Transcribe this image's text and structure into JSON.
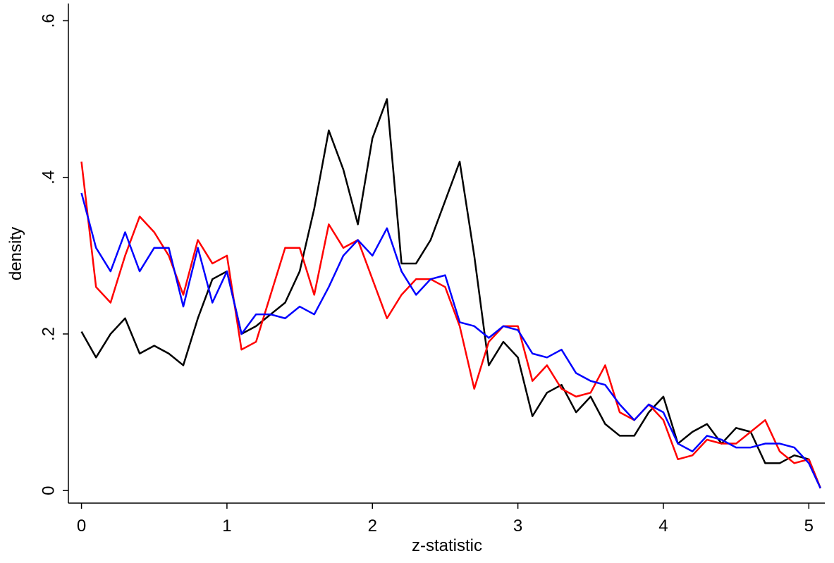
{
  "chart_data": {
    "type": "line",
    "x_label": "z-statistic",
    "y_label": "density",
    "x": [
      0,
      0.1,
      0.2,
      0.3,
      0.4,
      0.5,
      0.6,
      0.7,
      0.8,
      0.9,
      1.0,
      1.1,
      1.2,
      1.3,
      1.4,
      1.5,
      1.6,
      1.7,
      1.8,
      1.9,
      2.0,
      2.1,
      2.2,
      2.3,
      2.4,
      2.5,
      2.6,
      2.7,
      2.8,
      2.9,
      3.0,
      3.1,
      3.2,
      3.3,
      3.4,
      3.5,
      3.6,
      3.7,
      3.8,
      3.9,
      4.0,
      4.1,
      4.2,
      4.3,
      4.4,
      4.5,
      4.6,
      4.7,
      4.8,
      4.9,
      5.0,
      5.08
    ],
    "series": [
      {
        "color": "#000000",
        "values": [
          0.203,
          0.17,
          0.2,
          0.22,
          0.175,
          0.185,
          0.175,
          0.16,
          0.22,
          0.27,
          0.28,
          0.2,
          0.21,
          0.225,
          0.24,
          0.28,
          0.36,
          0.46,
          0.41,
          0.34,
          0.45,
          0.5,
          0.29,
          0.29,
          0.32,
          0.37,
          0.42,
          0.3,
          0.16,
          0.19,
          0.17,
          0.095,
          0.125,
          0.135,
          0.1,
          0.12,
          0.085,
          0.07,
          0.07,
          0.1,
          0.12,
          0.06,
          0.075,
          0.085,
          0.06,
          0.08,
          0.075,
          0.035,
          0.035,
          0.045,
          0.04,
          0.003
        ]
      },
      {
        "color": "#ff0000",
        "values": [
          0.42,
          0.26,
          0.24,
          0.3,
          0.35,
          0.33,
          0.3,
          0.25,
          0.32,
          0.29,
          0.3,
          0.18,
          0.19,
          0.25,
          0.31,
          0.31,
          0.25,
          0.34,
          0.31,
          0.32,
          0.27,
          0.22,
          0.25,
          0.27,
          0.27,
          0.26,
          0.21,
          0.13,
          0.19,
          0.21,
          0.21,
          0.14,
          0.16,
          0.13,
          0.12,
          0.125,
          0.16,
          0.1,
          0.09,
          0.11,
          0.09,
          0.04,
          0.045,
          0.065,
          0.06,
          0.06,
          0.075,
          0.09,
          0.05,
          0.035,
          0.04,
          0.003
        ]
      },
      {
        "color": "#0000ff",
        "values": [
          0.38,
          0.31,
          0.28,
          0.33,
          0.28,
          0.31,
          0.31,
          0.235,
          0.31,
          0.24,
          0.28,
          0.2,
          0.225,
          0.225,
          0.22,
          0.235,
          0.225,
          0.26,
          0.3,
          0.32,
          0.3,
          0.335,
          0.28,
          0.25,
          0.27,
          0.275,
          0.215,
          0.21,
          0.195,
          0.21,
          0.205,
          0.175,
          0.17,
          0.18,
          0.15,
          0.14,
          0.135,
          0.11,
          0.09,
          0.11,
          0.1,
          0.06,
          0.05,
          0.07,
          0.065,
          0.055,
          0.055,
          0.06,
          0.06,
          0.055,
          0.035,
          0.003
        ]
      }
    ],
    "xlim": [
      -0.09,
      5.11
    ],
    "ylim": [
      -0.016,
      0.622
    ],
    "xticks": [
      0,
      1,
      2,
      3,
      4,
      5
    ],
    "yticks": [
      0,
      {
        "value": 0.2,
        "label": ".2"
      },
      {
        "value": 0.4,
        "label": ".4"
      },
      {
        "value": 0.6,
        "label": ".6"
      }
    ]
  }
}
